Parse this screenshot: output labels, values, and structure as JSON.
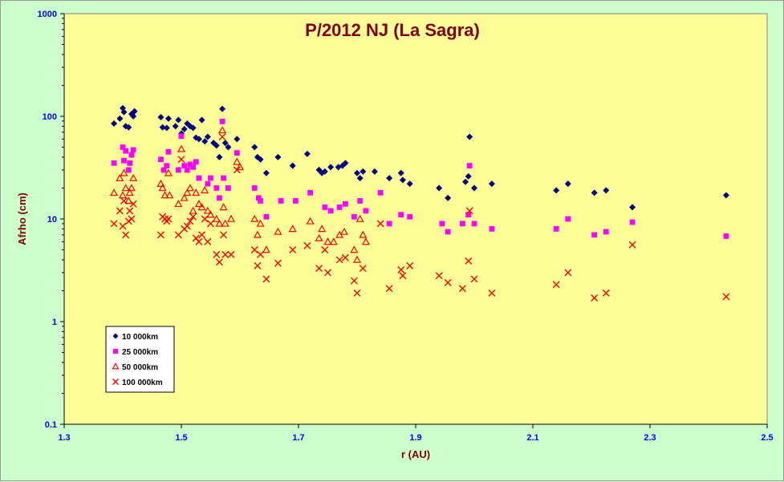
{
  "chart_data": {
    "type": "scatter",
    "title": "P/2012 NJ (La Sagra)",
    "xlabel": "r (AU)",
    "ylabel": "Afrho (cm)",
    "xlim": [
      1.3,
      2.5
    ],
    "ylim": [
      0.1,
      1000
    ],
    "yscale": "log",
    "x_ticks": [
      "1.3",
      "1.5",
      "1.7",
      "1.9",
      "2.1",
      "2.3",
      "2.5"
    ],
    "y_ticks": [
      "0.1",
      "1",
      "10",
      "100",
      "1000"
    ],
    "grid": false,
    "legend_position": "bottom-left",
    "colors": {
      "plot_bg": "#ffff99",
      "chart_bg": "#ccffcc",
      "title": "#800000",
      "axis_text": "#0000ff",
      "axis_label": "#800000"
    },
    "series": [
      {
        "name": "10 000km",
        "marker": "diamond",
        "color": "#000080",
        "points": [
          [
            1.385,
            85
          ],
          [
            1.395,
            95
          ],
          [
            1.4,
            120
          ],
          [
            1.402,
            110
          ],
          [
            1.405,
            80
          ],
          [
            1.41,
            78
          ],
          [
            1.415,
            105
          ],
          [
            1.418,
            100
          ],
          [
            1.42,
            112
          ],
          [
            1.465,
            98
          ],
          [
            1.468,
            78
          ],
          [
            1.475,
            77
          ],
          [
            1.478,
            95
          ],
          [
            1.49,
            80
          ],
          [
            1.495,
            92
          ],
          [
            1.5,
            68
          ],
          [
            1.505,
            75
          ],
          [
            1.51,
            85
          ],
          [
            1.515,
            80
          ],
          [
            1.52,
            77
          ],
          [
            1.525,
            62
          ],
          [
            1.53,
            60
          ],
          [
            1.535,
            92
          ],
          [
            1.54,
            57
          ],
          [
            1.545,
            63
          ],
          [
            1.555,
            55
          ],
          [
            1.56,
            52
          ],
          [
            1.565,
            40
          ],
          [
            1.57,
            118
          ],
          [
            1.575,
            55
          ],
          [
            1.58,
            50
          ],
          [
            1.595,
            60
          ],
          [
            1.625,
            50
          ],
          [
            1.63,
            40
          ],
          [
            1.635,
            38
          ],
          [
            1.645,
            28
          ],
          [
            1.665,
            40
          ],
          [
            1.69,
            33
          ],
          [
            1.715,
            43
          ],
          [
            1.735,
            30
          ],
          [
            1.74,
            28
          ],
          [
            1.745,
            29
          ],
          [
            1.755,
            32
          ],
          [
            1.768,
            32
          ],
          [
            1.775,
            33
          ],
          [
            1.78,
            35
          ],
          [
            1.8,
            28
          ],
          [
            1.805,
            25
          ],
          [
            1.81,
            29
          ],
          [
            1.83,
            29
          ],
          [
            1.855,
            25
          ],
          [
            1.875,
            28
          ],
          [
            1.878,
            24
          ],
          [
            1.89,
            22
          ],
          [
            1.94,
            20
          ],
          [
            1.955,
            16
          ],
          [
            1.985,
            23
          ],
          [
            1.99,
            26
          ],
          [
            1.992,
            63
          ],
          [
            2.0,
            20
          ],
          [
            2.03,
            22
          ],
          [
            2.14,
            19
          ],
          [
            2.16,
            22
          ],
          [
            2.205,
            18
          ],
          [
            2.225,
            19
          ],
          [
            2.27,
            13
          ],
          [
            2.43,
            17
          ]
        ]
      },
      {
        "name": "25 000km",
        "marker": "square",
        "color": "#ff00ff",
        "points": [
          [
            1.385,
            35
          ],
          [
            1.4,
            50
          ],
          [
            1.402,
            37
          ],
          [
            1.405,
            46
          ],
          [
            1.41,
            30
          ],
          [
            1.412,
            35
          ],
          [
            1.415,
            42
          ],
          [
            1.418,
            47
          ],
          [
            1.465,
            38
          ],
          [
            1.47,
            30
          ],
          [
            1.475,
            33
          ],
          [
            1.478,
            45
          ],
          [
            1.495,
            30
          ],
          [
            1.5,
            64
          ],
          [
            1.505,
            33
          ],
          [
            1.51,
            30
          ],
          [
            1.515,
            34
          ],
          [
            1.52,
            32
          ],
          [
            1.525,
            36
          ],
          [
            1.53,
            25
          ],
          [
            1.545,
            22
          ],
          [
            1.55,
            25
          ],
          [
            1.56,
            20
          ],
          [
            1.565,
            16
          ],
          [
            1.57,
            89
          ],
          [
            1.572,
            25
          ],
          [
            1.58,
            20
          ],
          [
            1.595,
            44
          ],
          [
            1.625,
            20
          ],
          [
            1.632,
            16
          ],
          [
            1.635,
            15
          ],
          [
            1.645,
            10.5
          ],
          [
            1.67,
            15
          ],
          [
            1.695,
            15
          ],
          [
            1.72,
            18
          ],
          [
            1.745,
            13
          ],
          [
            1.755,
            12
          ],
          [
            1.77,
            13
          ],
          [
            1.78,
            14
          ],
          [
            1.795,
            10.5
          ],
          [
            1.805,
            15
          ],
          [
            1.815,
            12
          ],
          [
            1.84,
            18
          ],
          [
            1.855,
            9
          ],
          [
            1.875,
            11
          ],
          [
            1.89,
            10.5
          ],
          [
            1.945,
            9
          ],
          [
            1.955,
            7.5
          ],
          [
            1.98,
            9
          ],
          [
            1.99,
            11
          ],
          [
            1.992,
            33
          ],
          [
            2.0,
            9
          ],
          [
            2.03,
            8
          ],
          [
            2.14,
            8
          ],
          [
            2.16,
            10
          ],
          [
            2.205,
            7
          ],
          [
            2.225,
            7.5
          ],
          [
            2.27,
            9.3
          ],
          [
            2.43,
            6.8
          ]
        ]
      },
      {
        "name": "50 000km",
        "marker": "triangle",
        "color": "#ff0000",
        "points": [
          [
            1.385,
            18
          ],
          [
            1.395,
            25
          ],
          [
            1.4,
            17
          ],
          [
            1.402,
            28
          ],
          [
            1.405,
            20
          ],
          [
            1.41,
            15
          ],
          [
            1.412,
            18
          ],
          [
            1.415,
            20
          ],
          [
            1.418,
            25
          ],
          [
            1.465,
            22
          ],
          [
            1.468,
            20
          ],
          [
            1.472,
            17
          ],
          [
            1.478,
            28
          ],
          [
            1.48,
            17
          ],
          [
            1.495,
            14
          ],
          [
            1.5,
            48
          ],
          [
            1.505,
            16
          ],
          [
            1.51,
            18
          ],
          [
            1.515,
            20
          ],
          [
            1.52,
            12
          ],
          [
            1.525,
            18
          ],
          [
            1.53,
            14
          ],
          [
            1.535,
            13
          ],
          [
            1.54,
            19
          ],
          [
            1.545,
            12
          ],
          [
            1.55,
            11
          ],
          [
            1.56,
            10
          ],
          [
            1.565,
            9
          ],
          [
            1.57,
            73
          ],
          [
            1.572,
            13
          ],
          [
            1.575,
            9
          ],
          [
            1.585,
            10
          ],
          [
            1.595,
            36
          ],
          [
            1.6,
            32
          ],
          [
            1.625,
            10
          ],
          [
            1.63,
            7
          ],
          [
            1.635,
            9
          ],
          [
            1.645,
            5
          ],
          [
            1.665,
            7.5
          ],
          [
            1.69,
            8
          ],
          [
            1.72,
            9.5
          ],
          [
            1.735,
            6.5
          ],
          [
            1.74,
            8
          ],
          [
            1.75,
            6
          ],
          [
            1.76,
            6
          ],
          [
            1.77,
            7
          ],
          [
            1.778,
            7.5
          ],
          [
            1.795,
            5
          ],
          [
            1.8,
            4
          ],
          [
            1.805,
            10
          ],
          [
            1.81,
            7
          ],
          [
            1.815,
            6
          ]
        ]
      },
      {
        "name": "100 000km",
        "marker": "x",
        "color": "#ff0000",
        "points": [
          [
            1.385,
            9
          ],
          [
            1.395,
            12
          ],
          [
            1.4,
            8.5
          ],
          [
            1.402,
            15
          ],
          [
            1.405,
            7
          ],
          [
            1.41,
            9.5
          ],
          [
            1.412,
            12
          ],
          [
            1.415,
            10
          ],
          [
            1.418,
            14
          ],
          [
            1.465,
            7
          ],
          [
            1.468,
            10.5
          ],
          [
            1.472,
            10
          ],
          [
            1.475,
            9.5
          ],
          [
            1.478,
            10
          ],
          [
            1.495,
            7
          ],
          [
            1.5,
            38
          ],
          [
            1.505,
            8
          ],
          [
            1.51,
            8.5
          ],
          [
            1.515,
            9.5
          ],
          [
            1.52,
            10.5
          ],
          [
            1.525,
            6.5
          ],
          [
            1.53,
            6
          ],
          [
            1.535,
            7
          ],
          [
            1.54,
            10
          ],
          [
            1.545,
            6
          ],
          [
            1.55,
            9
          ],
          [
            1.56,
            4.5
          ],
          [
            1.565,
            3.8
          ],
          [
            1.57,
            63
          ],
          [
            1.572,
            7
          ],
          [
            1.575,
            4.5
          ],
          [
            1.585,
            4.5
          ],
          [
            1.595,
            30
          ],
          [
            1.625,
            5
          ],
          [
            1.63,
            3.5
          ],
          [
            1.635,
            4.5
          ],
          [
            1.645,
            2.6
          ],
          [
            1.665,
            3.7
          ],
          [
            1.69,
            5
          ],
          [
            1.715,
            5.5
          ],
          [
            1.735,
            3.3
          ],
          [
            1.745,
            5
          ],
          [
            1.75,
            3
          ],
          [
            1.77,
            4
          ],
          [
            1.78,
            4.2
          ],
          [
            1.795,
            2.5
          ],
          [
            1.8,
            1.9
          ],
          [
            1.81,
            3.3
          ],
          [
            1.84,
            9
          ],
          [
            1.855,
            2.1
          ],
          [
            1.875,
            3.2
          ],
          [
            1.878,
            2.8
          ],
          [
            1.89,
            3.5
          ],
          [
            1.94,
            2.8
          ],
          [
            1.955,
            2.4
          ],
          [
            1.98,
            2.1
          ],
          [
            1.99,
            3.9
          ],
          [
            1.992,
            12
          ],
          [
            2.0,
            2.6
          ],
          [
            2.03,
            1.9
          ],
          [
            2.14,
            2.3
          ],
          [
            2.16,
            3
          ],
          [
            2.205,
            1.7
          ],
          [
            2.225,
            1.9
          ],
          [
            2.27,
            5.6
          ],
          [
            2.43,
            1.75
          ]
        ]
      }
    ]
  }
}
